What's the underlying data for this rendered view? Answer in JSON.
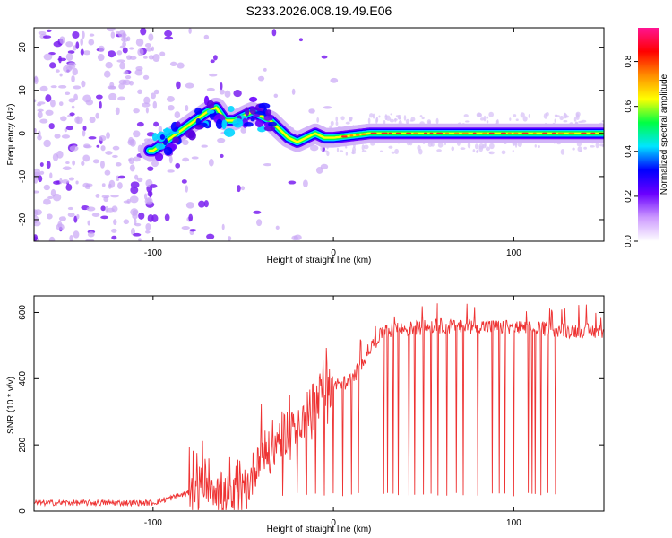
{
  "chart_data": [
    {
      "type": "heatmap",
      "title": "S233.2026.008.19.49.E06",
      "xlabel": "Height of straight line (km)",
      "ylabel": "Frequency (Hz)",
      "xlim": [
        -166,
        150
      ],
      "ylim": [
        -25,
        24.5
      ],
      "xticks": [
        "-100",
        "0",
        "100"
      ],
      "yticks": [
        "20",
        "10",
        "0",
        "-10",
        "-20"
      ],
      "colorbar": {
        "label": "Normalized spectral amplitude",
        "range": [
          0,
          0.95
        ],
        "ticks": [
          "0.0",
          "0.2",
          "0.4",
          "0.6",
          "0.8"
        ],
        "colors": [
          "#ffffff",
          "#cc99ff",
          "#6a00ff",
          "#0000ff",
          "#00e5ff",
          "#00ff44",
          "#ffff00",
          "#ff8c00",
          "#ff0000",
          "#ff1493"
        ]
      },
      "ridge": {
        "x": [
          -100,
          -90,
          -80,
          -70,
          -65,
          -60,
          -55,
          -50,
          -45,
          -40,
          -35,
          -30,
          -25,
          -20,
          -15,
          -10,
          -5,
          0,
          10,
          20,
          50,
          100,
          150
        ],
        "freq": [
          -4,
          -1,
          2,
          5,
          6,
          3,
          3,
          4,
          5,
          4,
          3,
          1,
          -1,
          -2,
          -1,
          0,
          -1,
          -1,
          -0.5,
          0,
          0,
          0,
          0
        ]
      }
    },
    {
      "type": "line",
      "xlabel": "Height of straight line (km)",
      "ylabel": "SNR (10 * v/v)",
      "xlim": [
        -166,
        150
      ],
      "ylim": [
        0,
        650
      ],
      "xticks": [
        "-100",
        "0",
        "100"
      ],
      "yticks": [
        "0",
        "200",
        "400",
        "600"
      ],
      "line_color": "#ee3333",
      "series": [
        {
          "name": "SNR",
          "x": [
            -166,
            -150,
            -130,
            -110,
            -100,
            -90,
            -80,
            -75,
            -70,
            -65,
            -60,
            -55,
            -50,
            -45,
            -40,
            -35,
            -30,
            -25,
            -20,
            -15,
            -10,
            -5,
            0,
            5,
            10,
            15,
            20,
            25,
            30,
            40,
            50,
            60,
            70,
            80,
            90,
            100,
            110,
            120,
            130,
            140,
            150
          ],
          "values": [
            25,
            25,
            25,
            25,
            25,
            40,
            55,
            65,
            100,
            75,
            40,
            40,
            45,
            105,
            200,
            165,
            225,
            245,
            280,
            300,
            325,
            385,
            380,
            385,
            395,
            440,
            490,
            525,
            545,
            550,
            555,
            560,
            555,
            560,
            555,
            555,
            550,
            550,
            545,
            545,
            540
          ]
        }
      ],
      "dropouts": [
        -28,
        -20,
        -15,
        -10,
        -5,
        0,
        5,
        10,
        14,
        28,
        30,
        33,
        36,
        42,
        45,
        50,
        54,
        58,
        63,
        68,
        72,
        80,
        88,
        92,
        95,
        100,
        108,
        110,
        112,
        115,
        119,
        123
      ]
    }
  ]
}
